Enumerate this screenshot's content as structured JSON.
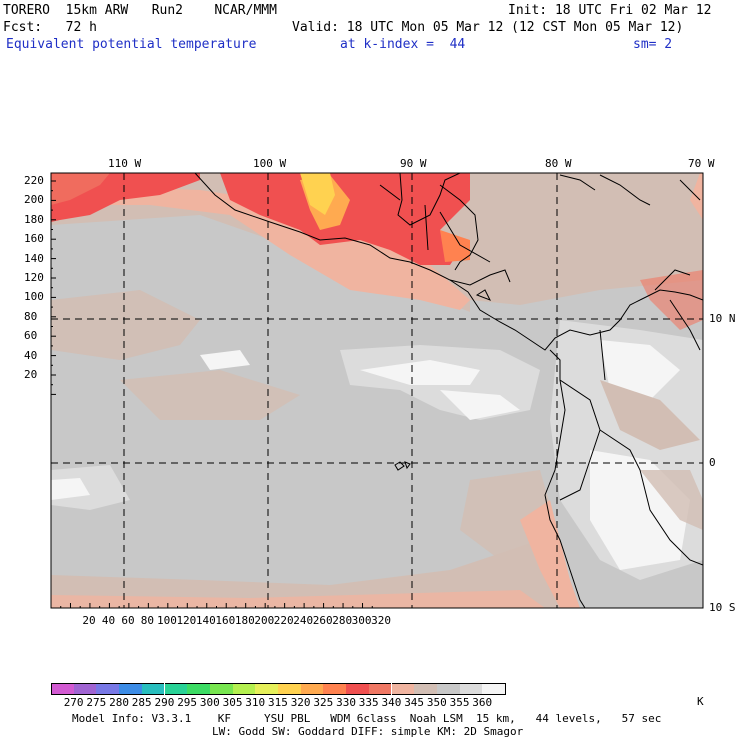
{
  "header": {
    "model": "TORERO  15km ARW   Run2    NCAR/MMM",
    "init": "Init: 18 UTC Fri 02 Mar 12",
    "fcst": "Fcst:   72 h",
    "valid": "Valid: 18 UTC Mon 05 Mar 12 (12 CST Mon 05 Mar 12)",
    "field": "Equivalent potential temperature",
    "level": "at k-index =  44",
    "smooth": "sm= 2"
  },
  "map": {
    "top_lon_labels": [
      "110 W",
      "100 W",
      "90 W",
      "80 W",
      "70 W"
    ],
    "right_lat_labels": [
      "10 N",
      "0",
      "10 S"
    ],
    "left_ticks": [
      "220",
      "200",
      "180",
      "160",
      "140",
      "120",
      "100",
      "80",
      "60",
      "40",
      "20"
    ],
    "bottom_ticks": [
      "20",
      "40",
      "60",
      "80",
      "100",
      "120",
      "140",
      "160",
      "180",
      "200",
      "220",
      "240",
      "260",
      "280",
      "300",
      "320"
    ]
  },
  "colorbar": {
    "labels": [
      "270",
      "275",
      "280",
      "285",
      "290",
      "295",
      "300",
      "305",
      "310",
      "315",
      "320",
      "325",
      "330",
      "335",
      "340",
      "345",
      "350",
      "355",
      "360"
    ],
    "unit": "K",
    "colors": [
      "#d25ad2",
      "#a064d2",
      "#7878e6",
      "#3c8ce6",
      "#28bebe",
      "#28d296",
      "#3cdc64",
      "#78e650",
      "#b4f050",
      "#e6f05a",
      "#ffd250",
      "#ffaa50",
      "#ff8250",
      "#f05050",
      "#f07864",
      "#f0b4a0",
      "#d2beb4",
      "#c8c8c8",
      "#dcdcdc",
      "#f5f5f5"
    ]
  },
  "footer": {
    "line1": "Model Info: V3.3.1    KF     YSU PBL   WDM 6class  Noah LSM  15 km,   44 levels,   57 sec",
    "line2": "LW: Godd SW: Goddard DIFF: simple KM: 2D Smagor"
  }
}
